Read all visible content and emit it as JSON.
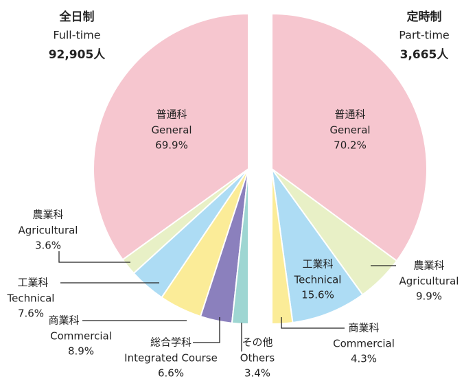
{
  "chart_data": [
    {
      "type": "pie",
      "title": "全日制",
      "subtitle": "Full-time",
      "total": "92,905人",
      "categories": [
        "普通科",
        "農業科",
        "工業科",
        "商業科",
        "総合学科",
        "その他"
      ],
      "categories_en": [
        "General",
        "Agricultural",
        "Technical",
        "Commercial",
        "Integrated Course",
        "Others"
      ],
      "values": [
        69.9,
        3.6,
        7.6,
        8.9,
        6.6,
        3.4
      ],
      "value_labels": [
        "69.9%",
        "3.6%",
        "7.6%",
        "8.9%",
        "6.6%",
        "3.4%"
      ],
      "colors": [
        "#f6c6cf",
        "#e8f0c6",
        "#addcf4",
        "#fbec98",
        "#8b80bd",
        "#9ed6d2"
      ]
    },
    {
      "type": "pie",
      "title": "定時制",
      "subtitle": "Part-time",
      "total": "3,665人",
      "categories": [
        "普通科",
        "農業科",
        "工業科",
        "商業科"
      ],
      "categories_en": [
        "General",
        "Agricultural",
        "Technical",
        "Commercial"
      ],
      "values": [
        70.2,
        9.9,
        15.6,
        4.3
      ],
      "value_labels": [
        "70.2%",
        "9.9%",
        "15.6%",
        "4.3%"
      ],
      "colors": [
        "#f6c6cf",
        "#e8f0c6",
        "#addcf4",
        "#fbec98"
      ]
    }
  ]
}
